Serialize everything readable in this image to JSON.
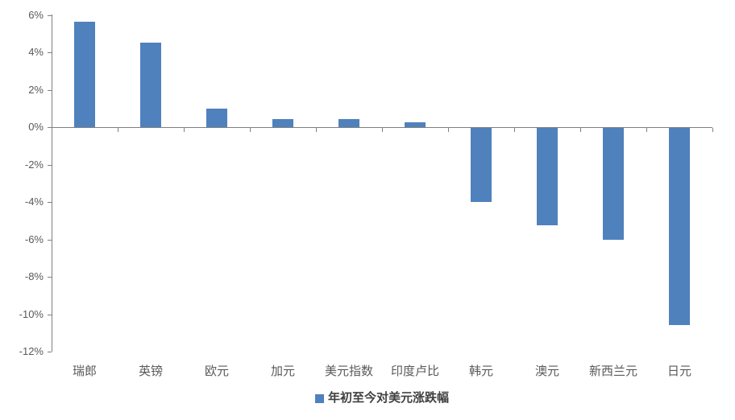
{
  "chart_data": {
    "type": "bar",
    "title": "",
    "xlabel": "",
    "ylabel": "",
    "categories": [
      "瑞郎",
      "英镑",
      "欧元",
      "加元",
      "美元指数",
      "印度卢比",
      "韩元",
      "澳元",
      "新西兰元",
      "日元"
    ],
    "values": [
      5.65,
      4.5,
      1.0,
      0.45,
      0.45,
      0.25,
      -4.0,
      -5.25,
      -6.0,
      -10.6
    ],
    "series_name": "年初至今对美元涨跌幅",
    "unit": "%",
    "y_tick_labels": [
      "6%",
      "4%",
      "2%",
      "0%",
      "-2%",
      "-4%",
      "-6%",
      "-8%",
      "-10%",
      "-12%"
    ],
    "y_tick_values": [
      6,
      4,
      2,
      0,
      -2,
      -4,
      -6,
      -8,
      -10,
      -12
    ],
    "ylim": [
      -12,
      6
    ],
    "grid": false,
    "legend_position": "bottom-center",
    "bar_color": "#4f81bd",
    "axis_color": "#7f7f7f",
    "tick_label_color": "#595959",
    "legend_text_color": "#404040",
    "background_color": "#ffffff"
  }
}
